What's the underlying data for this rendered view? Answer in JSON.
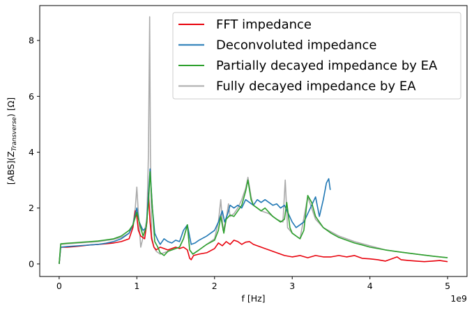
{
  "chart_data": {
    "type": "line",
    "xlabel": "f [Hz]",
    "ylabel_main": "[ABS](Z",
    "ylabel_sub": "Transverse",
    "ylabel_tail": ") [Ω]",
    "x_offset_text": "1e9",
    "xlim": [
      -0.25,
      5.25
    ],
    "ylim": [
      -0.45,
      9.25
    ],
    "x_ticks": [
      0,
      1,
      2,
      3,
      4,
      5
    ],
    "y_ticks": [
      0,
      2,
      4,
      6,
      8
    ],
    "x_tick_labels": [
      "0",
      "1",
      "2",
      "3",
      "4",
      "5"
    ],
    "y_tick_labels": [
      "0",
      "2",
      "4",
      "6",
      "8"
    ],
    "grid": false,
    "legend_position": "top-right",
    "series": [
      {
        "name": "FFT impedance",
        "color": "#e8000b",
        "x": [
          0,
          0.02,
          0.1,
          0.2,
          0.3,
          0.4,
          0.5,
          0.6,
          0.7,
          0.8,
          0.9,
          0.95,
          0.98,
          1.0,
          1.02,
          1.05,
          1.1,
          1.13,
          1.15,
          1.17,
          1.19,
          1.22,
          1.25,
          1.3,
          1.35,
          1.4,
          1.45,
          1.5,
          1.55,
          1.6,
          1.65,
          1.68,
          1.7,
          1.73,
          1.8,
          1.9,
          2.0,
          2.05,
          2.1,
          2.15,
          2.2,
          2.25,
          2.3,
          2.35,
          2.4,
          2.45,
          2.5,
          2.6,
          2.7,
          2.8,
          2.9,
          3.0,
          3.1,
          3.2,
          3.3,
          3.4,
          3.5,
          3.6,
          3.7,
          3.8,
          3.9,
          4.0,
          4.1,
          4.2,
          4.3,
          4.35,
          4.4,
          4.5,
          4.6,
          4.7,
          4.8,
          4.9,
          5.0
        ],
        "y": [
          0.0,
          0.6,
          0.6,
          0.62,
          0.65,
          0.68,
          0.7,
          0.72,
          0.75,
          0.8,
          0.9,
          1.3,
          1.9,
          1.7,
          1.2,
          1.0,
          0.9,
          1.5,
          2.55,
          1.5,
          0.9,
          0.6,
          0.5,
          0.6,
          0.55,
          0.5,
          0.55,
          0.6,
          0.55,
          0.6,
          0.5,
          0.2,
          0.15,
          0.3,
          0.35,
          0.4,
          0.55,
          0.75,
          0.65,
          0.8,
          0.7,
          0.85,
          0.8,
          0.7,
          0.78,
          0.8,
          0.7,
          0.6,
          0.5,
          0.4,
          0.3,
          0.25,
          0.3,
          0.22,
          0.3,
          0.25,
          0.25,
          0.3,
          0.25,
          0.3,
          0.2,
          0.18,
          0.15,
          0.1,
          0.2,
          0.25,
          0.15,
          0.12,
          0.1,
          0.08,
          0.1,
          0.12,
          0.08
        ]
      },
      {
        "name": "Deconvoluted impedance",
        "color": "#1f77b4",
        "x": [
          0,
          0.02,
          0.1,
          0.2,
          0.3,
          0.4,
          0.5,
          0.6,
          0.7,
          0.8,
          0.9,
          0.95,
          1.0,
          1.03,
          1.08,
          1.12,
          1.15,
          1.17,
          1.2,
          1.23,
          1.27,
          1.3,
          1.35,
          1.4,
          1.45,
          1.5,
          1.55,
          1.6,
          1.65,
          1.7,
          1.75,
          1.8,
          1.9,
          1.95,
          2.0,
          2.05,
          2.1,
          2.13,
          2.17,
          2.2,
          2.25,
          2.3,
          2.35,
          2.4,
          2.45,
          2.5,
          2.55,
          2.6,
          2.65,
          2.7,
          2.75,
          2.8,
          2.85,
          2.9,
          2.95,
          3.0,
          3.05,
          3.1,
          3.15,
          3.2,
          3.25,
          3.3,
          3.35,
          3.4,
          3.44,
          3.47,
          3.49
        ],
        "y": [
          0.0,
          0.6,
          0.62,
          0.64,
          0.66,
          0.68,
          0.7,
          0.74,
          0.8,
          0.9,
          1.1,
          1.4,
          2.0,
          1.5,
          1.2,
          1.3,
          2.5,
          3.4,
          2.0,
          1.1,
          0.85,
          0.7,
          0.9,
          0.8,
          0.75,
          0.85,
          0.8,
          1.2,
          1.4,
          0.7,
          0.75,
          0.85,
          1.0,
          1.1,
          1.2,
          1.5,
          1.9,
          1.5,
          1.8,
          2.1,
          2.0,
          2.1,
          2.0,
          2.3,
          2.2,
          2.1,
          2.3,
          2.2,
          2.3,
          2.2,
          2.1,
          2.15,
          2.0,
          2.1,
          1.8,
          1.5,
          1.3,
          1.4,
          1.5,
          1.8,
          2.1,
          2.4,
          1.7,
          2.3,
          2.9,
          3.05,
          2.65
        ]
      },
      {
        "name": "Partially decayed impedance by EA",
        "color": "#2ca02c",
        "x": [
          0,
          0.02,
          0.1,
          0.2,
          0.3,
          0.4,
          0.5,
          0.6,
          0.7,
          0.8,
          0.9,
          0.95,
          1.0,
          1.03,
          1.08,
          1.12,
          1.15,
          1.17,
          1.2,
          1.23,
          1.27,
          1.3,
          1.35,
          1.4,
          1.45,
          1.5,
          1.55,
          1.6,
          1.65,
          1.68,
          1.72,
          1.8,
          1.9,
          2.0,
          2.05,
          2.08,
          2.12,
          2.15,
          2.2,
          2.25,
          2.3,
          2.35,
          2.4,
          2.43,
          2.47,
          2.5,
          2.55,
          2.6,
          2.65,
          2.7,
          2.75,
          2.8,
          2.85,
          2.9,
          2.93,
          2.97,
          3.0,
          3.05,
          3.1,
          3.15,
          3.2,
          3.25,
          3.3,
          3.35,
          3.4,
          3.5,
          3.6,
          3.7,
          3.8,
          3.9,
          4.0,
          4.2,
          4.4,
          4.6,
          4.8,
          5.0
        ],
        "y": [
          0.0,
          0.72,
          0.74,
          0.76,
          0.78,
          0.8,
          0.82,
          0.86,
          0.9,
          1.0,
          1.2,
          1.4,
          1.85,
          1.5,
          1.0,
          1.3,
          2.2,
          3.3,
          2.0,
          0.8,
          0.6,
          0.4,
          0.3,
          0.45,
          0.5,
          0.55,
          0.6,
          0.9,
          1.4,
          0.5,
          0.35,
          0.5,
          0.7,
          0.85,
          1.2,
          1.7,
          1.1,
          1.6,
          1.75,
          1.7,
          1.9,
          2.1,
          2.6,
          3.0,
          2.3,
          2.1,
          2.0,
          1.9,
          2.0,
          1.85,
          1.7,
          1.6,
          1.5,
          1.6,
          2.2,
          1.3,
          1.1,
          1.0,
          0.9,
          1.2,
          2.45,
          2.2,
          1.7,
          1.5,
          1.3,
          1.1,
          0.95,
          0.85,
          0.75,
          0.68,
          0.6,
          0.5,
          0.42,
          0.35,
          0.28,
          0.22
        ]
      },
      {
        "name": "Fully decayed impedance by EA",
        "color": "#aaaaaa",
        "x": [
          0,
          0.02,
          0.1,
          0.2,
          0.3,
          0.4,
          0.5,
          0.6,
          0.7,
          0.8,
          0.9,
          0.95,
          0.98,
          1.0,
          1.02,
          1.05,
          1.1,
          1.13,
          1.15,
          1.165,
          1.175,
          1.19,
          1.22,
          1.25,
          1.3,
          1.35,
          1.4,
          1.45,
          1.5,
          1.55,
          1.6,
          1.65,
          1.68,
          1.72,
          1.8,
          1.9,
          2.0,
          2.05,
          2.08,
          2.11,
          2.15,
          2.18,
          2.2,
          2.25,
          2.3,
          2.35,
          2.4,
          2.43,
          2.47,
          2.5,
          2.6,
          2.7,
          2.8,
          2.88,
          2.91,
          2.94,
          3.0,
          3.1,
          3.2,
          3.3,
          3.4,
          3.6,
          3.8,
          4.0,
          4.2,
          4.4,
          4.6,
          4.8,
          5.0
        ],
        "y": [
          0.0,
          0.7,
          0.72,
          0.74,
          0.76,
          0.78,
          0.8,
          0.84,
          0.88,
          0.95,
          1.1,
          1.4,
          2.0,
          2.75,
          1.8,
          0.6,
          1.2,
          1.6,
          4.0,
          8.85,
          4.0,
          1.0,
          0.6,
          0.45,
          0.35,
          0.4,
          0.45,
          0.5,
          0.55,
          0.6,
          0.9,
          1.4,
          0.5,
          0.35,
          0.5,
          0.7,
          0.9,
          1.5,
          2.3,
          1.2,
          1.6,
          2.15,
          1.7,
          1.8,
          2.0,
          2.3,
          2.7,
          3.1,
          2.4,
          2.1,
          1.9,
          1.8,
          1.6,
          1.5,
          3.0,
          1.3,
          1.1,
          0.9,
          2.4,
          1.6,
          1.3,
          1.0,
          0.8,
          0.65,
          0.5,
          0.42,
          0.35,
          0.28,
          0.22
        ]
      }
    ]
  }
}
